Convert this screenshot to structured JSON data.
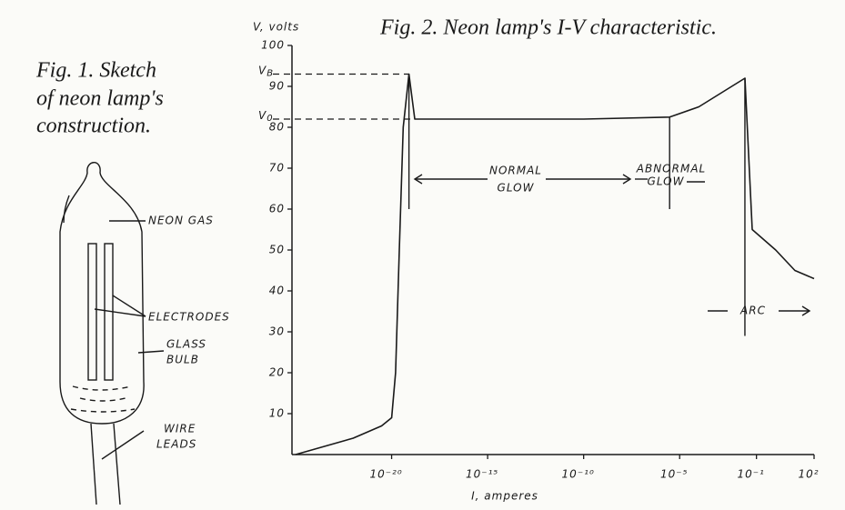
{
  "figure_1": {
    "caption": [
      "Fig. 1. Sketch",
      "of neon lamp's",
      "construction."
    ],
    "labels": {
      "neon_gas": "NEON GAS",
      "electrodes": "ELECTRODES",
      "glass_bulb": [
        "GLASS",
        "BULB"
      ],
      "wire_leads": [
        "WIRE",
        "LEADS"
      ]
    }
  },
  "chart_data": {
    "type": "line",
    "title": "Fig. 2. Neon lamp's I-V characteristic.",
    "y_label": "V, volts",
    "x_label": "I, amperes",
    "x_scale": "log",
    "xlim": [
      1e-25,
      100
    ],
    "ylim": [
      0,
      100
    ],
    "xticks": [
      {
        "value": 1e-20,
        "label": "10⁻²⁰"
      },
      {
        "value": 1e-15,
        "label": "10⁻¹⁵"
      },
      {
        "value": 1e-10,
        "label": "10⁻¹⁰"
      },
      {
        "value": 1e-05,
        "label": "10⁻⁵"
      },
      {
        "value": 0.1,
        "label": "10⁻¹"
      },
      {
        "value": 100,
        "label": "10²"
      }
    ],
    "yticks": [
      10,
      20,
      30,
      40,
      50,
      60,
      70,
      80,
      90,
      100
    ],
    "x": [
      1e-25,
      1e-22,
      3e-21,
      1e-20,
      1.6e-20,
      2.5e-20,
      4e-20,
      8e-20,
      1.6e-19,
      1e-10,
      3e-06,
      0.0001,
      0.025,
      0.06,
      1,
      10,
      100
    ],
    "series": [
      {
        "color": "#1a1a1a",
        "values": [
          0,
          4,
          7,
          9,
          20,
          50,
          80,
          93,
          82,
          82,
          82.5,
          85,
          92,
          55,
          50,
          45,
          43
        ]
      }
    ],
    "annotations": [
      {
        "label": "V",
        "subscript": "B",
        "value": 93
      },
      {
        "label": "V",
        "subscript": "0",
        "value": 82
      }
    ],
    "regions": {
      "normal_glow": [
        "NORMAL",
        "GLOW"
      ],
      "abnormal_glow": [
        "ABNORMAL",
        "GLOW"
      ],
      "arc": "ARC"
    }
  }
}
